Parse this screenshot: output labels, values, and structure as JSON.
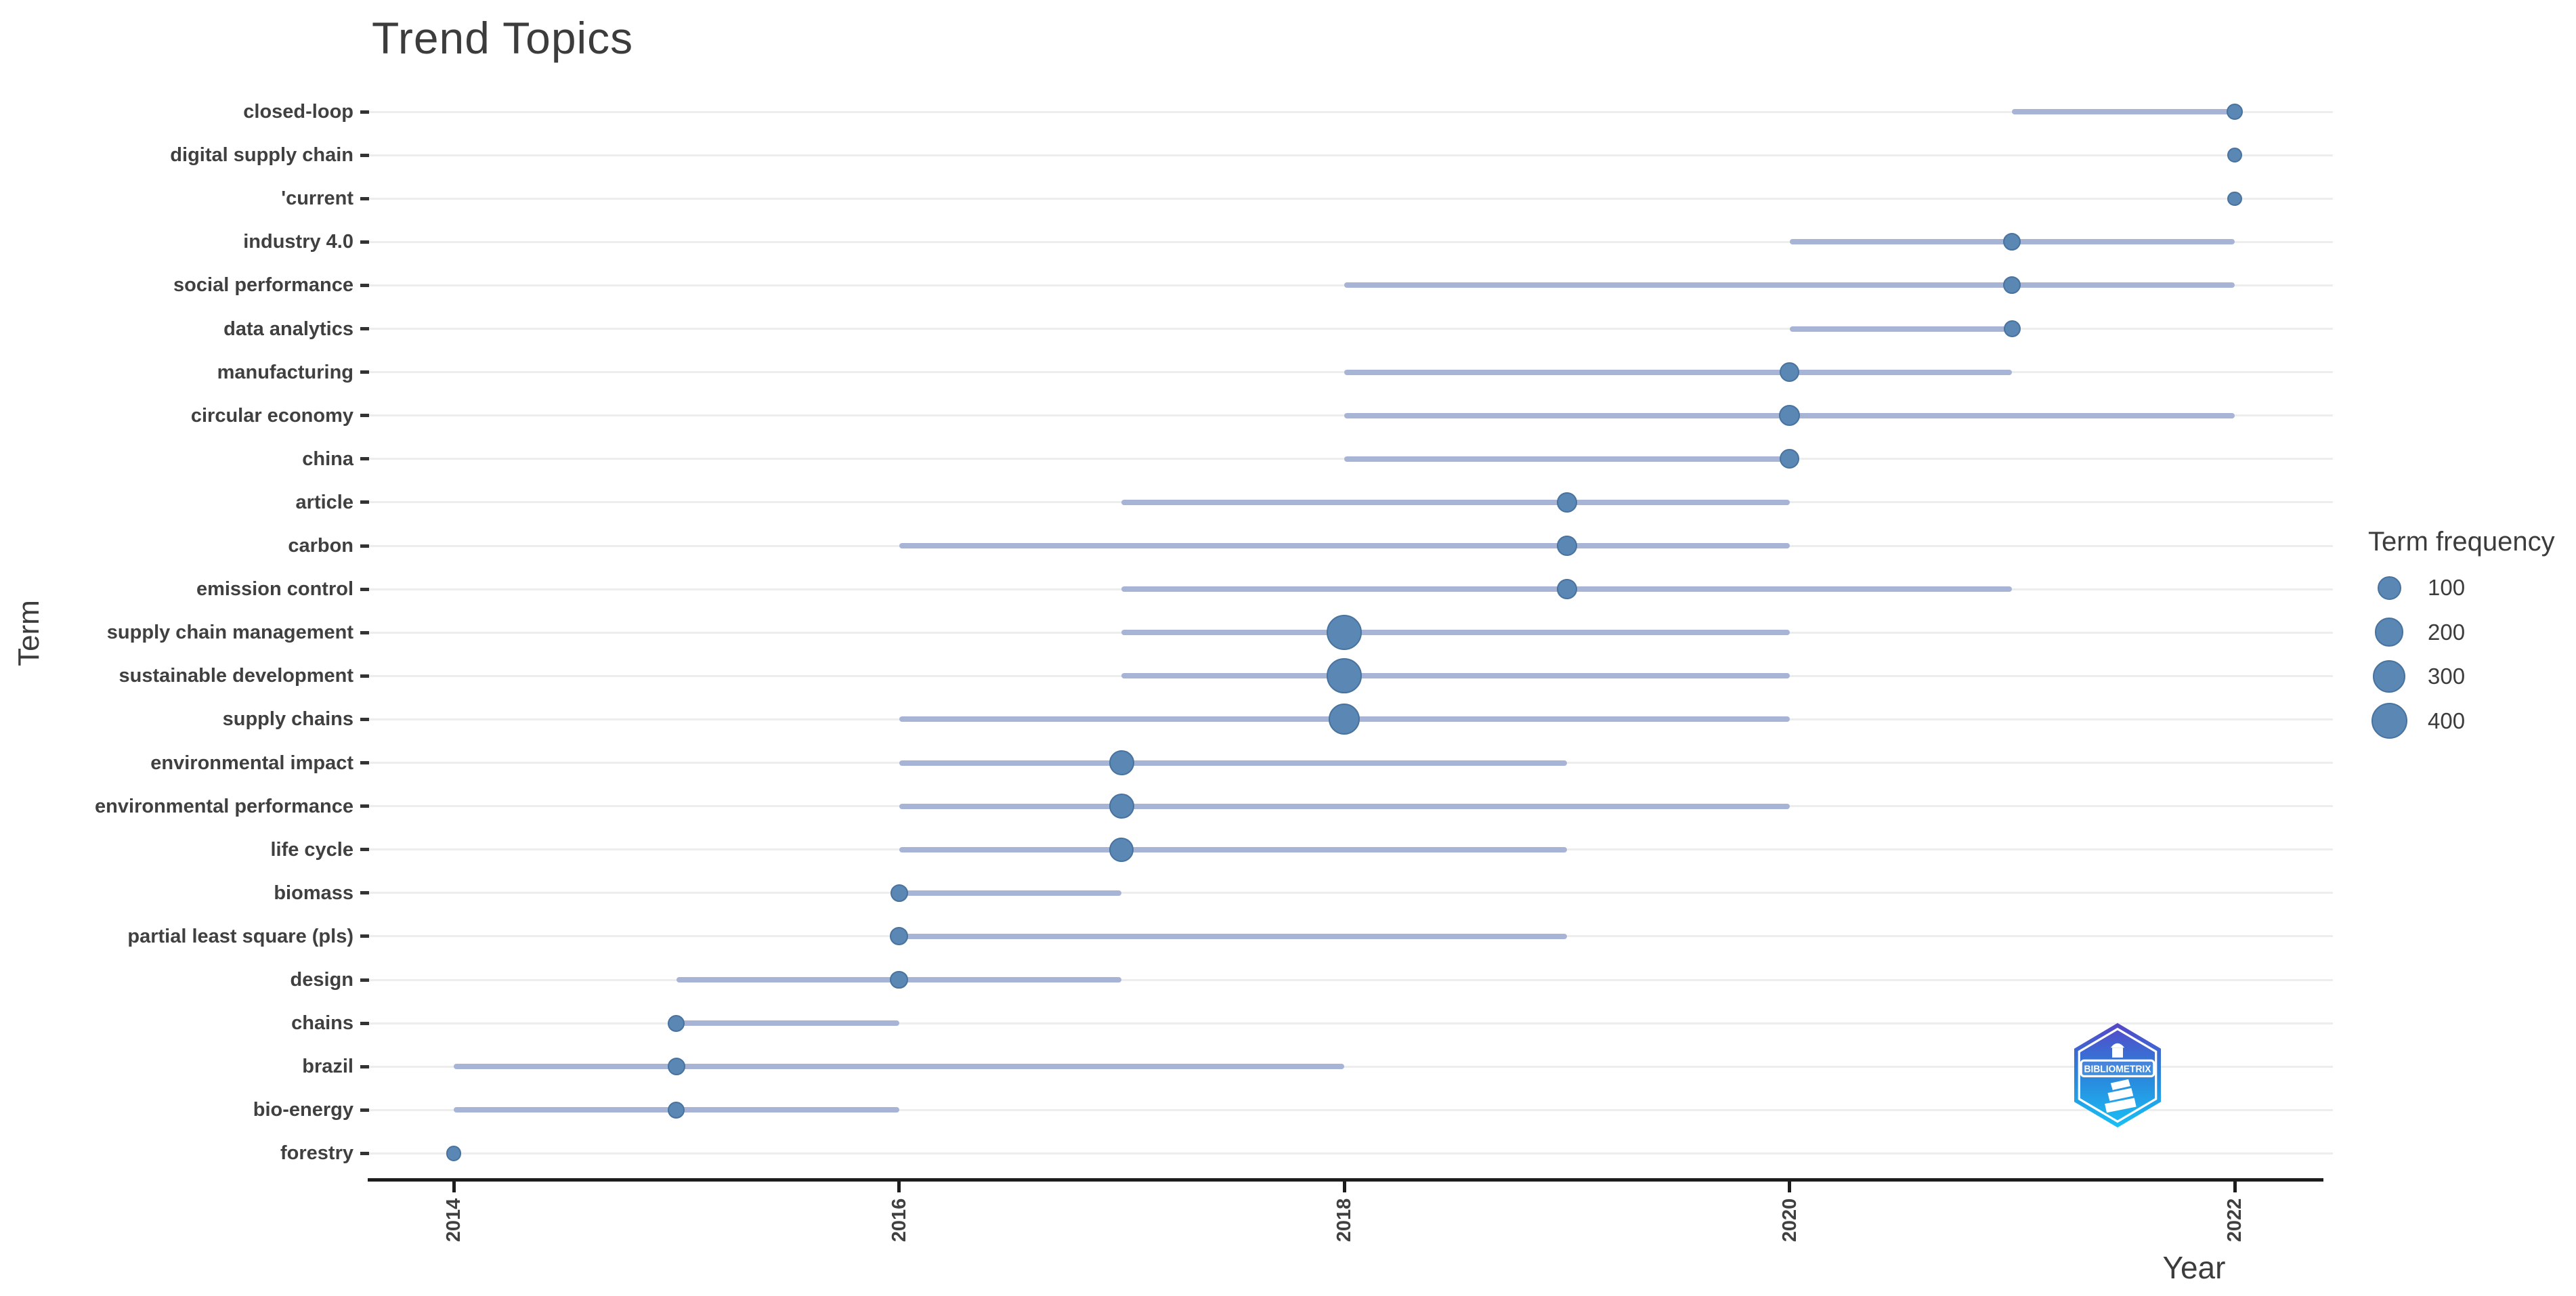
{
  "title": "Trend Topics",
  "x_axis": {
    "label": "Year",
    "ticks": [
      2014,
      2016,
      2018,
      2020,
      2022
    ]
  },
  "y_axis": {
    "label": "Term"
  },
  "legend": {
    "title": "Term frequency",
    "sizes": [
      100,
      200,
      300,
      400
    ]
  },
  "branding": {
    "logo_text": "BIBLIOMETRIX"
  },
  "colors": {
    "dot_fill": "#5b87b5",
    "dot_stroke": "#48739f",
    "trend_line": "#a8b4d6",
    "gridline": "#ededed",
    "axis_line": "#1d1d1d",
    "text": "#3c3c3c",
    "tick_label": "#404040",
    "logo_top": "#5646c8",
    "logo_mid": "#2e7fd9",
    "logo_bottom": "#18c0f5"
  },
  "chart_data": {
    "type": "scatter",
    "subtype": "trend-topics-lollipop",
    "title": "Trend Topics",
    "xlabel": "Year",
    "ylabel": "Term",
    "xlim": [
      2013.6,
      2022.4
    ],
    "x_ticks": [
      2014,
      2016,
      2018,
      2020,
      2022
    ],
    "grid": "horizontal-only",
    "legend_position": "right",
    "legend_title": "Term frequency",
    "legend_sizes": [
      100,
      200,
      300,
      400
    ],
    "rows": [
      {
        "term": "closed-loop",
        "freq": 15,
        "year": 2022,
        "year_start": 2021,
        "year_end": 2022
      },
      {
        "term": "digital supply chain",
        "freq": 8,
        "year": 2022,
        "year_start": 2022,
        "year_end": 2022
      },
      {
        "term": "'current",
        "freq": 5,
        "year": 2022,
        "year_start": 2022,
        "year_end": 2022
      },
      {
        "term": "industry 4.0",
        "freq": 25,
        "year": 2021,
        "year_start": 2020,
        "year_end": 2022
      },
      {
        "term": "social performance",
        "freq": 25,
        "year": 2021,
        "year_start": 2018,
        "year_end": 2022
      },
      {
        "term": "data analytics",
        "freq": 20,
        "year": 2021,
        "year_start": 2020,
        "year_end": 2021
      },
      {
        "term": "manufacturing",
        "freq": 50,
        "year": 2020,
        "year_start": 2018,
        "year_end": 2021
      },
      {
        "term": "circular economy",
        "freq": 60,
        "year": 2020,
        "year_start": 2018,
        "year_end": 2022
      },
      {
        "term": "china",
        "freq": 45,
        "year": 2020,
        "year_start": 2018,
        "year_end": 2020
      },
      {
        "term": "article",
        "freq": 50,
        "year": 2019,
        "year_start": 2017,
        "year_end": 2020
      },
      {
        "term": "carbon",
        "freq": 50,
        "year": 2019,
        "year_start": 2016,
        "year_end": 2020
      },
      {
        "term": "emission control",
        "freq": 50,
        "year": 2019,
        "year_start": 2017,
        "year_end": 2021
      },
      {
        "term": "supply chain management",
        "freq": 380,
        "year": 2018,
        "year_start": 2017,
        "year_end": 2020
      },
      {
        "term": "sustainable development",
        "freq": 370,
        "year": 2018,
        "year_start": 2017,
        "year_end": 2020
      },
      {
        "term": "supply chains",
        "freq": 260,
        "year": 2018,
        "year_start": 2016,
        "year_end": 2020
      },
      {
        "term": "environmental impact",
        "freq": 120,
        "year": 2017,
        "year_start": 2016,
        "year_end": 2019
      },
      {
        "term": "environmental performance",
        "freq": 125,
        "year": 2017,
        "year_start": 2016,
        "year_end": 2020
      },
      {
        "term": "life cycle",
        "freq": 110,
        "year": 2017,
        "year_start": 2016,
        "year_end": 2019
      },
      {
        "term": "biomass",
        "freq": 25,
        "year": 2016,
        "year_start": 2016,
        "year_end": 2017
      },
      {
        "term": "partial least square (pls)",
        "freq": 30,
        "year": 2016,
        "year_start": 2016,
        "year_end": 2019
      },
      {
        "term": "design",
        "freq": 30,
        "year": 2016,
        "year_start": 2015,
        "year_end": 2017
      },
      {
        "term": "chains",
        "freq": 20,
        "year": 2015,
        "year_start": 2015,
        "year_end": 2016
      },
      {
        "term": "brazil",
        "freq": 25,
        "year": 2015,
        "year_start": 2014,
        "year_end": 2018
      },
      {
        "term": "bio-energy",
        "freq": 20,
        "year": 2015,
        "year_start": 2014,
        "year_end": 2016
      },
      {
        "term": "forestry",
        "freq": 10,
        "year": 2014,
        "year_start": 2014,
        "year_end": 2014
      }
    ]
  }
}
